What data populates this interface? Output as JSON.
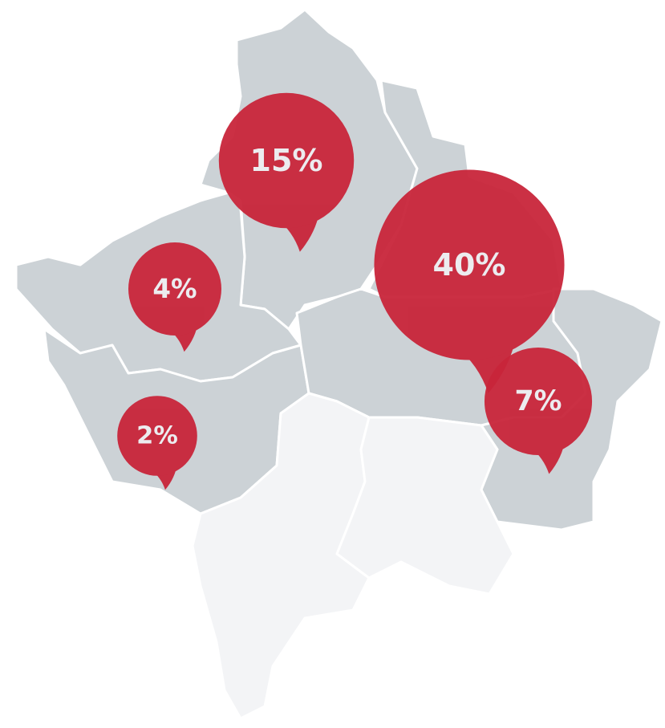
{
  "markers": [
    {
      "value": 15,
      "label": "15%"
    },
    {
      "value": 4,
      "label": "4%"
    },
    {
      "value": 40,
      "label": "40%"
    },
    {
      "value": 7,
      "label": "7%"
    },
    {
      "value": 2,
      "label": "2%"
    }
  ]
}
